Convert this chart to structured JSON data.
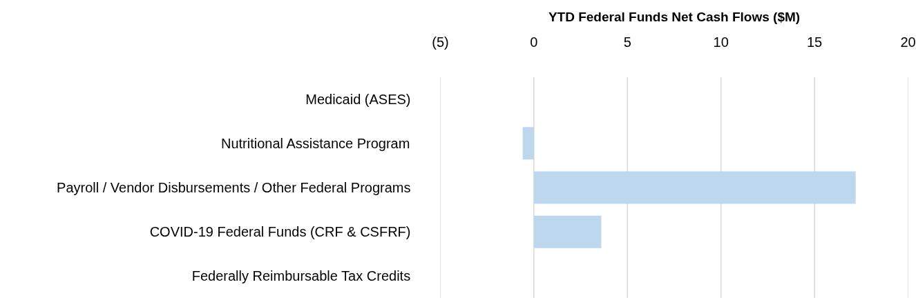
{
  "chart_data": {
    "type": "bar",
    "orientation": "horizontal",
    "xlabel": "YTD Federal Funds Net Cash Flows ($M)",
    "categories": [
      "Medicaid (ASES)",
      "Nutritional Assistance Program",
      "Payroll / Vendor Disbursements / Other Federal Programs",
      "COVID-19 Federal Funds (CRF & CSFRF)",
      "Federally Reimbursable Tax Credits"
    ],
    "values": [
      0,
      -0.6,
      17.2,
      3.6,
      0
    ],
    "color": "#bdd7ee",
    "xlim": [
      -5,
      20
    ],
    "xticks": [
      {
        "value": -5,
        "label": "(5)"
      },
      0,
      5,
      10,
      15,
      20
    ],
    "grid": "x"
  }
}
